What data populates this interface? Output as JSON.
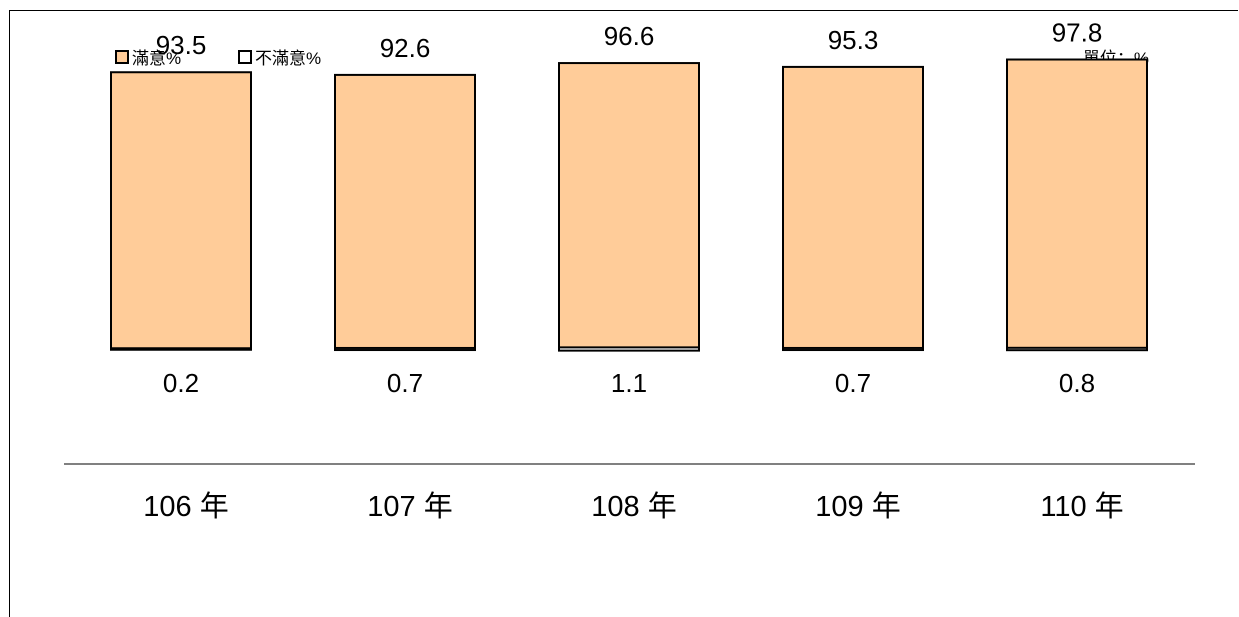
{
  "chart_data": {
    "type": "bar",
    "categories": [
      "106 年",
      "107 年",
      "108 年",
      "109 年",
      "110 年"
    ],
    "series": [
      {
        "name": "滿意%",
        "values": [
          93.5,
          92.6,
          96.6,
          95.3,
          97.8
        ],
        "color": "#FFCC99"
      },
      {
        "name": "不滿意%",
        "values": [
          0.2,
          0.7,
          1.1,
          0.7,
          0.8
        ],
        "color": "#FFFFFF"
      }
    ],
    "unit_label": "單位：%",
    "ylim": [
      0,
      100
    ],
    "legend_position": "top-left",
    "grid": false
  }
}
